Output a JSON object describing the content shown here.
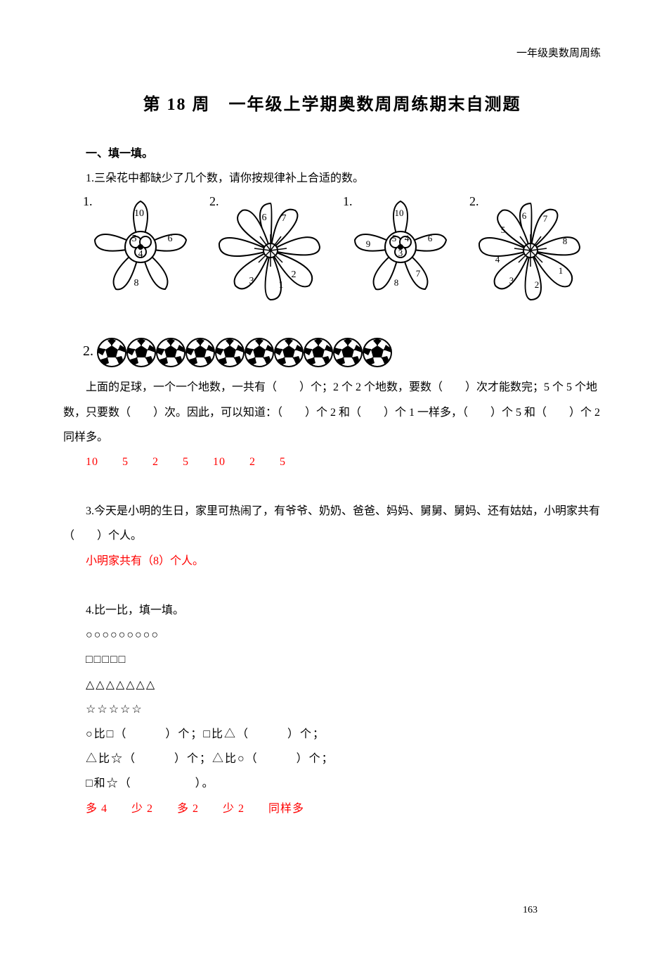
{
  "header_right": "一年级奥数周周练",
  "title": "第 18 周　一年级上学期奥数周周练期末自测题",
  "section1": "一、填一填。",
  "q1": "1.三朵花中都缺少了几个数，请你按规律补上合适的数。",
  "flowers": {
    "labels": [
      "1.",
      "2.",
      "1.",
      "2."
    ],
    "f1": {
      "petals": [
        "10",
        "",
        "6",
        "",
        "8",
        ""
      ],
      "center": [
        "5",
        "",
        "4"
      ]
    },
    "f2": {
      "petals": [
        "6",
        "7",
        "",
        "",
        "1",
        "2",
        "3",
        ""
      ]
    },
    "f3": {
      "petals": [
        "10",
        "",
        "6",
        "7",
        "8",
        "",
        "9"
      ],
      "center": [
        "5",
        "4",
        "3"
      ]
    },
    "f4": {
      "petals": [
        "6",
        "7",
        "8",
        "",
        "1",
        "2",
        "3",
        "4",
        "5"
      ]
    }
  },
  "q2_prefix": "2.",
  "ball_count": 10,
  "q2_body": "上面的足球，一个一个地数，一共有（　　）个；2 个 2 个地数，要数（　　）次才能数完；5 个 5 个地数，只要数（　　）次。因此，可以知道：（　　）个 2 和（　　）个 1 一样多，（　　）个 5 和（　　）个 2 同样多。",
  "q2_answers": "10　　5　　2　　5　　10　　2　　5",
  "q3": "3.今天是小明的生日，家里可热闹了，有爷爷、奶奶、爸爸、妈妈、舅舅、舅妈、还有姑姑，小明家共有（　　）个人。",
  "q3_answer": "小明家共有（8）个人。",
  "q4": "4.比一比，填一填。",
  "q4_lines": {
    "circles": "○○○○○○○○○",
    "squares": "□□□□□",
    "triangles": "△△△△△△△",
    "stars": "☆☆☆☆☆",
    "cmp1": "○比□（　　　）个；□比△（　　　）个；",
    "cmp2": "△比☆（　　　）个；△比○（　　　）个；",
    "cmp3": "□和☆（　　　　　）。"
  },
  "q4_answers": "多 4　　少 2　　多 2　　少 2　　同样多",
  "page_number": "163",
  "colors": {
    "text": "#000000",
    "answer": "#ff0000",
    "background": "#ffffff"
  }
}
